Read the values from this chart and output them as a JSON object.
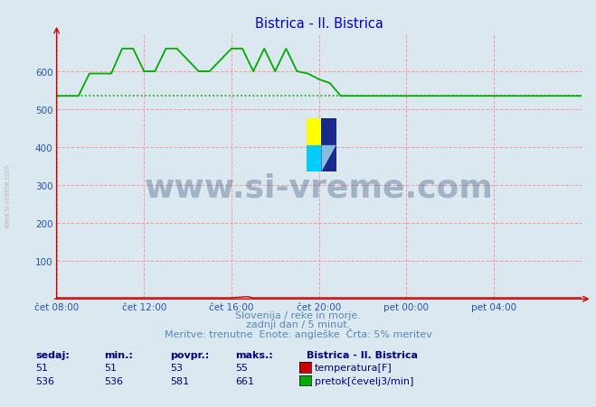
{
  "title": "Bistrica - Il. Bistrica",
  "title_color": "#0000cc",
  "bg_color": "#dce8f0",
  "plot_bg_color": "#dce8f0",
  "grid_color": "#ff9999",
  "ylim": [
    0,
    700
  ],
  "yticks": [
    100,
    200,
    300,
    400,
    500,
    600
  ],
  "xlabel_color": "#2255aa",
  "ylabel_color": "#2255aa",
  "xtick_labels": [
    "čet 08:00",
    "čet 12:00",
    "čet 16:00",
    "čet 20:00",
    "pet 00:00",
    "pet 04:00"
  ],
  "xtick_positions": [
    0,
    96,
    192,
    288,
    384,
    480
  ],
  "total_points": 576,
  "temp_color": "#cc0000",
  "flow_color": "#00aa00",
  "ref_line_color": "#00aa00",
  "ref_line_value": 536,
  "watermark_text": "www.si-vreme.com",
  "watermark_color": "#1a3a6a",
  "watermark_alpha": 0.3,
  "watermark_fontsize": 26,
  "subtitle1": "Slovenija / reke in morje.",
  "subtitle2": "zadnji dan / 5 minut.",
  "subtitle3": "Meritve: trenutne  Enote: angleške  Črta: 5% meritev",
  "subtitle_color": "#5588bb",
  "table_header": [
    "sedaj:",
    "min.:",
    "povpr.:",
    "maks.:"
  ],
  "table_color": "#000080",
  "legend_title": "Bistrica - Il. Bistrica",
  "legend_items": [
    {
      "label": "temperatura[F]",
      "color": "#cc0000"
    },
    {
      "label": "pretok[čevelj3/min]",
      "color": "#00aa00"
    }
  ],
  "temp_sedaj": 51,
  "temp_min": 51,
  "temp_povpr": 53,
  "temp_maks": 55,
  "flow_sedaj": 536,
  "flow_min": 536,
  "flow_povpr": 581,
  "flow_maks": 661,
  "flow_data_x": [
    0,
    24,
    24,
    36,
    36,
    60,
    60,
    72,
    72,
    84,
    84,
    96,
    96,
    108,
    108,
    120,
    120,
    132,
    132,
    156,
    156,
    168,
    168,
    192,
    192,
    204,
    204,
    216,
    216,
    228,
    228,
    240,
    240,
    252,
    252,
    264,
    264,
    276,
    276,
    288,
    288,
    300,
    300,
    312,
    312,
    576
  ],
  "flow_data_y": [
    536,
    536,
    536,
    595,
    595,
    595,
    595,
    661,
    661,
    661,
    661,
    601,
    601,
    601,
    601,
    661,
    661,
    661,
    661,
    601,
    601,
    601,
    601,
    661,
    661,
    661,
    661,
    601,
    601,
    661,
    661,
    601,
    601,
    661,
    661,
    601,
    601,
    595,
    595,
    580,
    580,
    570,
    570,
    536,
    536,
    536
  ],
  "temp_data_x": [
    0,
    192,
    210,
    215,
    576
  ],
  "temp_data_y": [
    3,
    3,
    6,
    3,
    3
  ],
  "axis_arrow_color": "#cc0000",
  "left_label": "www.si-vreme.com",
  "left_label_color": "#bbbbbb"
}
